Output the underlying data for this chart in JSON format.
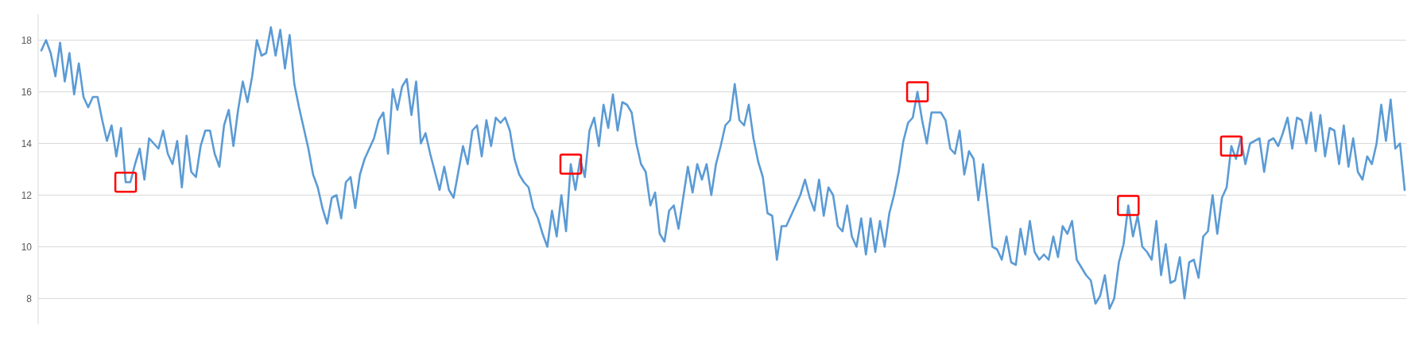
{
  "chart_data": {
    "type": "line",
    "tick_labels": "y",
    "grid": "y",
    "ylim": [
      7,
      19
    ],
    "yticks": [
      8,
      10,
      12,
      14,
      16,
      18
    ],
    "categories": [
      null,
      null,
      null,
      null,
      null,
      null,
      null,
      null,
      null,
      null,
      null,
      null,
      null,
      null,
      null,
      null,
      null,
      null,
      null,
      null,
      null,
      null,
      null,
      null,
      null,
      null,
      null,
      null,
      null,
      null,
      null,
      null,
      null,
      null,
      null,
      null,
      null,
      null,
      null,
      null,
      null,
      null,
      null,
      null,
      null,
      null,
      null,
      null,
      null,
      null,
      null,
      null,
      null,
      null,
      null,
      null,
      null,
      null,
      null,
      null,
      null,
      null,
      null,
      null,
      null,
      null,
      null,
      null,
      null,
      null,
      null,
      null,
      null,
      null,
      null,
      null,
      null,
      null,
      null,
      null,
      null,
      null,
      null,
      null,
      null,
      null,
      null,
      null,
      null,
      null,
      null,
      null,
      null,
      null,
      null,
      null,
      null,
      null,
      null,
      null,
      null,
      null,
      null,
      null,
      null,
      null,
      null,
      null,
      null,
      null,
      null,
      null,
      null,
      null,
      null,
      null,
      null,
      null,
      null,
      null,
      null,
      null,
      null,
      null,
      null,
      null,
      null,
      null,
      null,
      null,
      null,
      null,
      null,
      null,
      null,
      null,
      null,
      null,
      null,
      null,
      null,
      null,
      null,
      null,
      null,
      null,
      null,
      null,
      null,
      null,
      null,
      null,
      null,
      null,
      null,
      null,
      null,
      null,
      null,
      null,
      null,
      null,
      null,
      null,
      null,
      null,
      null,
      null,
      null,
      null,
      null,
      null,
      null,
      null,
      null,
      null,
      null,
      null,
      null,
      null,
      null,
      null,
      null,
      null,
      null,
      null,
      null,
      null,
      null,
      null,
      null,
      null,
      null,
      null,
      null,
      null,
      null,
      null,
      null,
      null,
      null,
      null,
      null,
      null,
      null,
      null,
      null,
      null,
      null,
      null,
      null,
      null,
      null,
      null,
      null,
      null,
      null,
      null,
      null,
      null,
      null,
      null,
      null,
      null,
      null,
      null,
      null,
      null,
      null,
      null,
      null,
      null,
      null,
      null,
      null,
      null,
      null,
      null,
      null,
      null,
      null,
      null,
      null,
      null,
      null,
      null,
      null,
      null,
      null,
      null,
      null,
      null,
      null,
      null,
      null,
      null,
      null,
      null,
      null,
      null,
      null,
      null,
      null,
      null,
      null,
      null,
      null,
      null,
      null,
      null,
      null,
      null,
      null,
      null,
      null,
      null,
      null,
      null,
      null,
      null,
      null,
      null,
      null,
      null,
      null,
      null,
      null,
      null,
      null,
      null,
      null,
      null
    ],
    "series": [
      {
        "color": "#5b9bd5",
        "values": [
          17.6,
          18.0,
          17.5,
          16.6,
          17.9,
          16.4,
          17.5,
          15.9,
          17.1,
          15.8,
          15.4,
          15.8,
          15.8,
          14.9,
          14.1,
          14.7,
          13.5,
          14.6,
          12.5,
          12.5,
          13.2,
          13.8,
          12.6,
          14.2,
          14.0,
          13.8,
          14.5,
          13.6,
          13.2,
          14.1,
          12.3,
          14.3,
          12.9,
          12.7,
          13.9,
          14.5,
          14.5,
          13.6,
          13.1,
          14.7,
          15.3,
          13.9,
          15.3,
          16.4,
          15.6,
          16.6,
          18.0,
          17.4,
          17.5,
          18.5,
          17.4,
          18.4,
          16.9,
          18.2,
          16.3,
          15.4,
          14.6,
          13.8,
          12.8,
          12.3,
          11.5,
          10.9,
          11.9,
          12.0,
          11.1,
          12.5,
          12.7,
          11.5,
          12.8,
          13.4,
          13.8,
          14.2,
          14.9,
          15.2,
          13.6,
          16.1,
          15.3,
          16.2,
          16.5,
          15.1,
          16.4,
          14.0,
          14.4,
          13.6,
          12.9,
          12.2,
          13.1,
          12.2,
          11.9,
          12.9,
          13.9,
          13.2,
          14.5,
          14.7,
          13.5,
          14.9,
          13.9,
          15.0,
          14.8,
          15.0,
          14.5,
          13.4,
          12.8,
          12.5,
          12.3,
          11.5,
          11.1,
          10.5,
          10.0,
          11.4,
          10.4,
          12.0,
          10.6,
          13.2,
          12.2,
          13.4,
          12.7,
          14.5,
          15.0,
          13.9,
          15.5,
          14.6,
          15.9,
          14.5,
          15.6,
          15.5,
          15.2,
          14.0,
          13.2,
          12.9,
          11.6,
          12.1,
          10.5,
          10.2,
          11.4,
          11.6,
          10.7,
          11.9,
          13.1,
          12.1,
          13.2,
          12.6,
          13.2,
          12.0,
          13.2,
          13.9,
          14.7,
          14.9,
          16.3,
          14.9,
          14.7,
          15.5,
          14.2,
          13.3,
          12.7,
          11.3,
          11.2,
          9.5,
          10.8,
          10.8,
          11.2,
          11.6,
          12.0,
          12.6,
          11.9,
          11.4,
          12.6,
          11.2,
          12.3,
          12.0,
          10.8,
          10.6,
          11.6,
          10.4,
          10.0,
          11.1,
          9.7,
          11.1,
          9.8,
          11.0,
          10.0,
          11.3,
          12.0,
          12.9,
          14.1,
          14.8,
          15.0,
          16.0,
          14.9,
          14.0,
          15.2,
          15.2,
          15.2,
          14.9,
          13.8,
          13.6,
          14.5,
          12.8,
          13.7,
          13.4,
          11.8,
          13.2,
          11.6,
          10.0,
          9.9,
          9.5,
          10.4,
          9.4,
          9.3,
          10.7,
          9.7,
          11.0,
          9.8,
          9.5,
          9.7,
          9.5,
          10.4,
          9.6,
          10.8,
          10.5,
          11.0,
          9.5,
          9.2,
          8.9,
          8.7,
          7.8,
          8.1,
          8.9,
          7.6,
          8.0,
          9.4,
          10.1,
          11.6,
          10.4,
          11.2,
          10.0,
          9.8,
          9.5,
          11.0,
          8.9,
          10.1,
          8.6,
          8.7,
          9.6,
          8.0,
          9.4,
          9.5,
          8.8,
          10.4,
          10.6,
          12.0,
          10.5,
          11.9,
          12.3,
          13.9,
          13.4,
          14.2,
          13.2,
          14.0,
          14.1,
          14.2,
          12.9,
          14.1,
          14.2,
          13.9,
          14.4,
          15.0,
          13.8,
          15.0,
          14.9,
          14.0,
          15.2,
          13.7,
          15.1,
          13.5,
          14.6,
          14.5,
          13.2,
          14.7,
          13.1,
          14.2,
          12.9,
          12.6,
          13.5,
          13.2,
          14.0,
          15.5,
          14.1,
          15.7,
          13.8,
          14.0,
          12.2
        ]
      }
    ]
  }
}
